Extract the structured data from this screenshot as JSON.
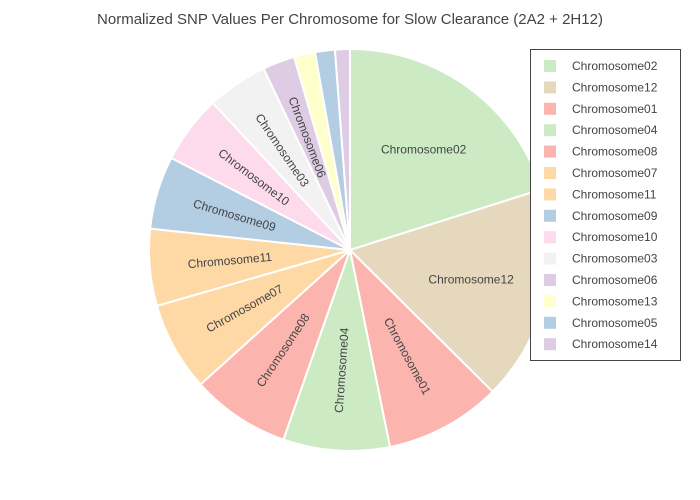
{
  "chart_data": {
    "type": "pie",
    "title": "Normalized SNP Values Per Chromosome for Slow Clearance (2A2 + 2H12)",
    "legend_position": "top-right",
    "slices": [
      {
        "label": "Chromosome02",
        "value": 20.2,
        "color": "#ccebc5",
        "show_label": true
      },
      {
        "label": "Chromosome12",
        "value": 17.4,
        "color": "#e5d8bd",
        "show_label": true
      },
      {
        "label": "Chromosome01",
        "value": 9.4,
        "color": "#fbb4ae",
        "show_label": true
      },
      {
        "label": "Chromosome04",
        "value": 8.6,
        "color": "#ccebc5",
        "show_label": true
      },
      {
        "label": "Chromosome08",
        "value": 8.0,
        "color": "#fbb4ae",
        "show_label": true
      },
      {
        "label": "Chromosome07",
        "value": 7.2,
        "color": "#fed9a6",
        "show_label": true
      },
      {
        "label": "Chromosome11",
        "value": 6.2,
        "color": "#fed9a6",
        "show_label": true
      },
      {
        "label": "Chromosome09",
        "value": 5.9,
        "color": "#b3cde3",
        "show_label": true
      },
      {
        "label": "Chromosome10",
        "value": 5.5,
        "color": "#fddaec",
        "show_label": true
      },
      {
        "label": "Chromosome03",
        "value": 4.9,
        "color": "#f2f2f2",
        "show_label": true
      },
      {
        "label": "Chromosome06",
        "value": 2.6,
        "color": "#decbe4",
        "show_label": true
      },
      {
        "label": "Chromosome13",
        "value": 1.7,
        "color": "#ffffcc",
        "show_label": false
      },
      {
        "label": "Chromosome05",
        "value": 1.6,
        "color": "#b3cde3",
        "show_label": false
      },
      {
        "label": "Chromosome14",
        "value": 1.2,
        "color": "#decbe4",
        "show_label": false
      }
    ]
  }
}
